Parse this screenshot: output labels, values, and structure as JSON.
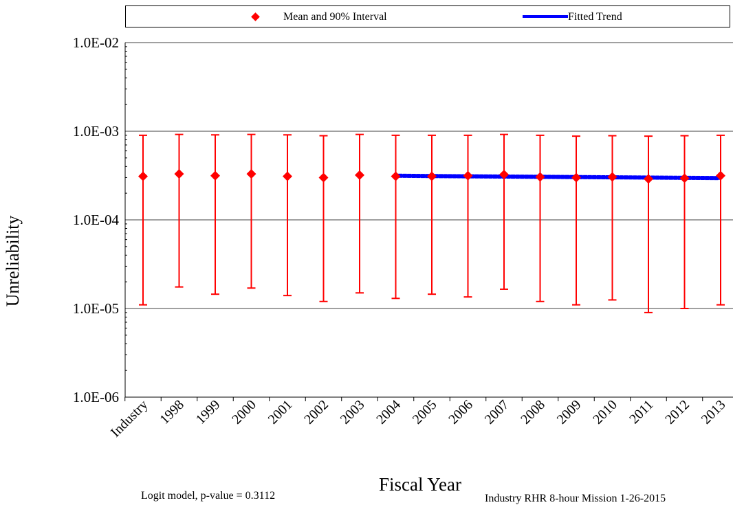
{
  "legend": {
    "mean_label": "Mean and 90% Interval",
    "trend_label": "Fitted Trend"
  },
  "footer": {
    "model_note": "Logit model, p-value = 0.3112",
    "source_note": "Industry RHR 8-hour Mission 1-26-2015"
  },
  "chart_data": {
    "type": "scatter",
    "title": "",
    "xlabel": "Fiscal Year",
    "ylabel": "Unreliability",
    "yscale": "log",
    "ylim": [
      1e-06,
      0.01
    ],
    "yticks": [
      {
        "value": 1e-06,
        "label": "1.0E-06"
      },
      {
        "value": 1e-05,
        "label": "1.0E-05"
      },
      {
        "value": 0.0001,
        "label": "1.0E-04"
      },
      {
        "value": 0.001,
        "label": "1.0E-03"
      },
      {
        "value": 0.01,
        "label": "1.0E-02"
      }
    ],
    "grid": true,
    "legend_position": "top",
    "categories": [
      "Industry",
      "1998",
      "1999",
      "2000",
      "2001",
      "2002",
      "2003",
      "2004",
      "2005",
      "2006",
      "2007",
      "2008",
      "2009",
      "2010",
      "2011",
      "2012",
      "2013"
    ],
    "series": [
      {
        "name": "Mean and 90% Interval",
        "color": "#ff0000",
        "marker": "diamond",
        "mean": [
          0.00031,
          0.00033,
          0.000315,
          0.00033,
          0.00031,
          0.0003,
          0.00032,
          0.00031,
          0.00031,
          0.000315,
          0.000325,
          0.000305,
          0.0003,
          0.000305,
          0.00029,
          0.000295,
          0.000315
        ],
        "lower": [
          1.1e-05,
          1.75e-05,
          1.45e-05,
          1.7e-05,
          1.4e-05,
          1.2e-05,
          1.5e-05,
          1.3e-05,
          1.45e-05,
          1.35e-05,
          1.65e-05,
          1.2e-05,
          1.1e-05,
          1.25e-05,
          9e-06,
          1e-05,
          1.1e-05
        ],
        "upper": [
          0.0009,
          0.00092,
          0.00091,
          0.00092,
          0.00091,
          0.00089,
          0.00092,
          0.0009,
          0.0009,
          0.0009,
          0.00092,
          0.0009,
          0.00088,
          0.00089,
          0.00088,
          0.00089,
          0.0009
        ]
      },
      {
        "name": "Fitted Trend",
        "color": "#0000ff",
        "type": "line",
        "x": [
          "2004",
          "2005",
          "2006",
          "2007",
          "2008",
          "2009",
          "2010",
          "2011",
          "2012",
          "2013"
        ],
        "values": [
          0.000315,
          0.000312,
          0.00031,
          0.000308,
          0.000306,
          0.000304,
          0.000302,
          0.0003,
          0.000298,
          0.000296
        ]
      }
    ]
  }
}
